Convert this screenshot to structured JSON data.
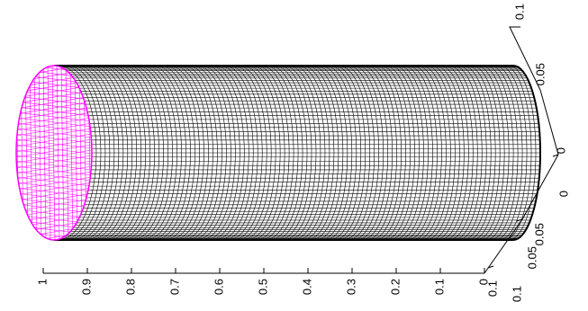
{
  "figure": {
    "kind": "3d-mesh-plot",
    "colors": {
      "background": "#ffffff",
      "surface_mesh": "#000000",
      "end_cap_mesh": "#ff00ff",
      "axes": "#000000"
    }
  },
  "mesh": {
    "shape": "cylinder",
    "surface_label": "",
    "end_cap_label": ""
  },
  "axes": {
    "long_axis": {
      "ticks": [
        "1",
        "0.9",
        "0.8",
        "0.7",
        "0.6",
        "0.5",
        "0.4",
        "0.3",
        "0.2",
        "0.1",
        "0"
      ],
      "range": [
        0,
        1
      ]
    },
    "depth_axis": {
      "ticks": [
        "0.1",
        "0.05",
        "0"
      ]
    },
    "right_axis": {
      "ticks": [
        "0.1",
        "0.05",
        "0",
        "0.05",
        "0.1"
      ]
    }
  }
}
